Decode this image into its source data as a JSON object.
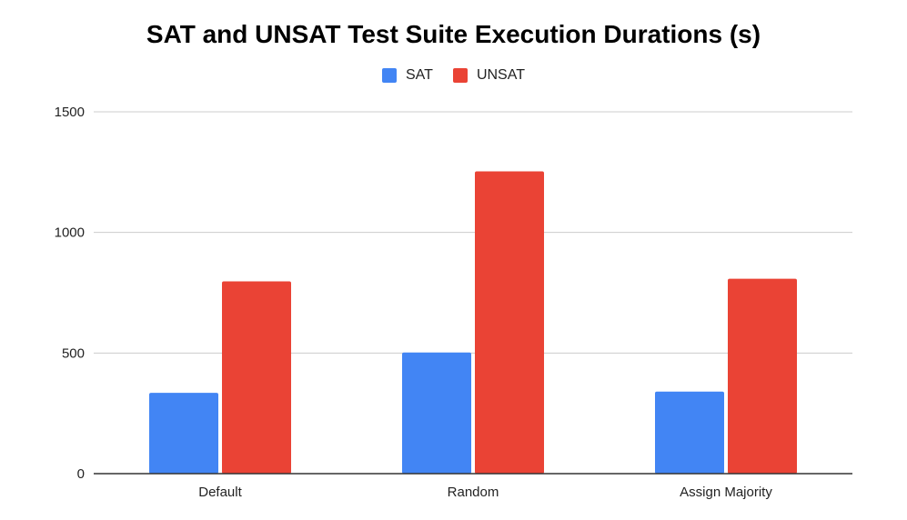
{
  "chart_data": {
    "type": "bar",
    "title": "SAT and UNSAT Test Suite Execution Durations (s)",
    "xlabel": "",
    "ylabel": "",
    "categories": [
      "Default",
      "Random",
      "Assign Majority"
    ],
    "series": [
      {
        "name": "SAT",
        "color": "#4285f4",
        "values": [
          335,
          502,
          340
        ]
      },
      {
        "name": "UNSAT",
        "color": "#ea4335",
        "values": [
          797,
          1253,
          808
        ]
      }
    ],
    "ylim": [
      0,
      1500
    ],
    "yticks": [
      0,
      500,
      1000,
      1500
    ],
    "grid": true,
    "legend_position": "top-center"
  }
}
